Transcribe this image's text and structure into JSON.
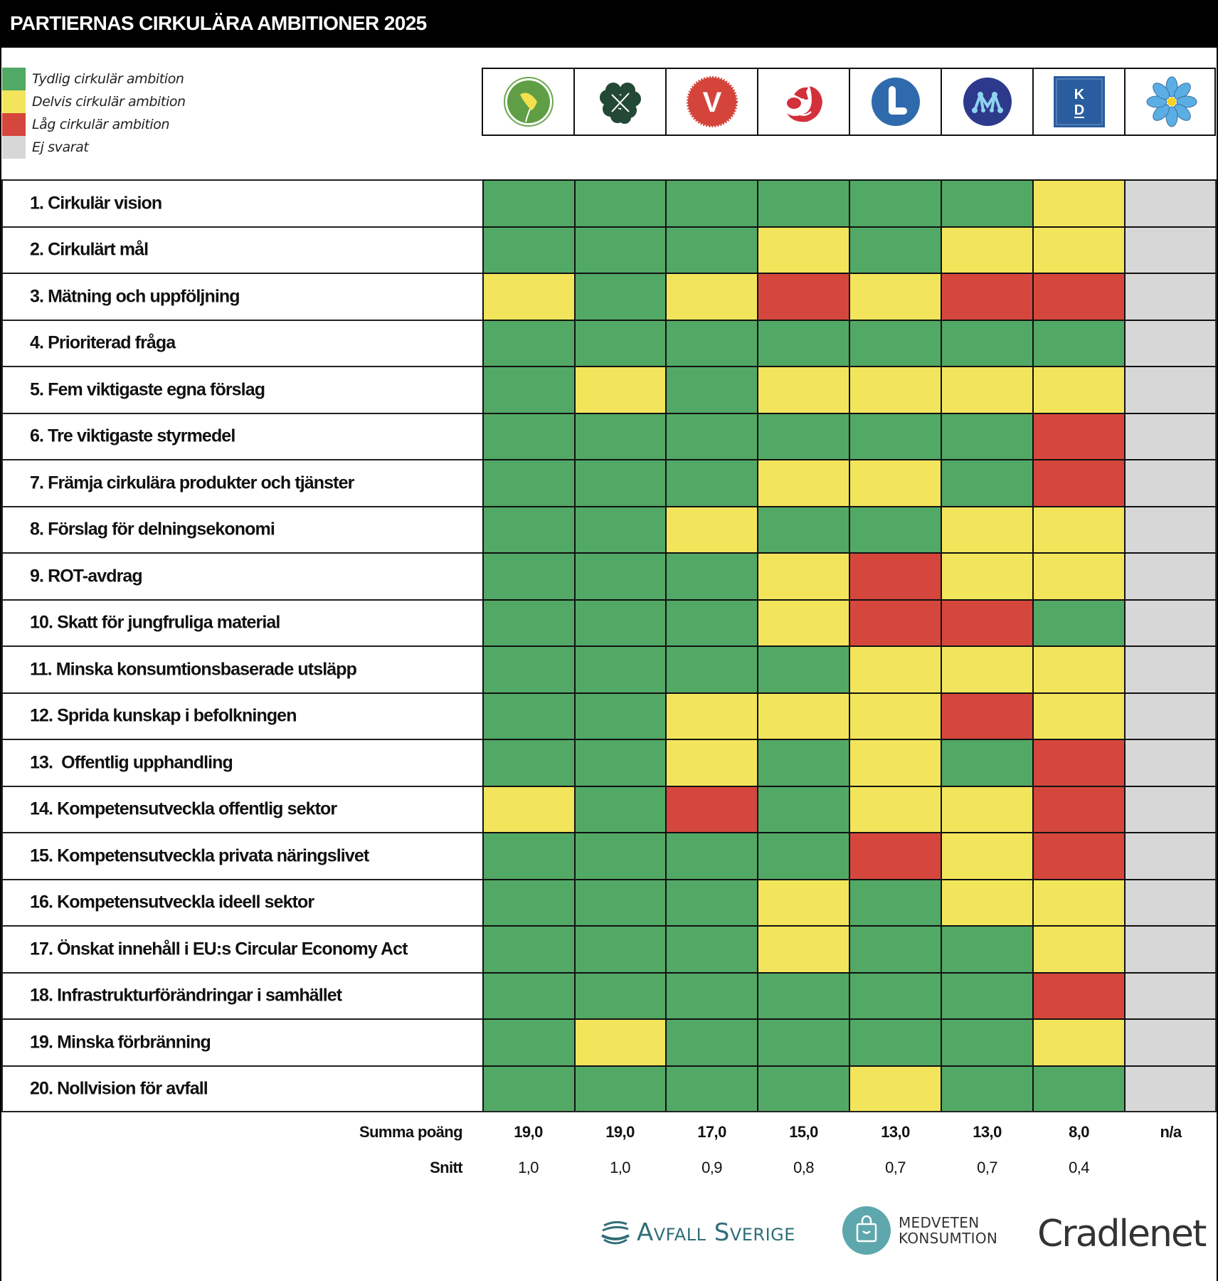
{
  "header": {
    "title": "PARTIERNAS CIRKULÄRA AMBITIONER 2025"
  },
  "colors": {
    "green": "#52a865",
    "yellow": "#f2e55c",
    "red": "#d5473d",
    "grey": "#d7d7d7"
  },
  "legend": [
    {
      "key": "green",
      "label": "Tydlig cirkulär ambition"
    },
    {
      "key": "yellow",
      "label": "Delvis cirkulär ambition"
    },
    {
      "key": "red",
      "label": "Låg cirkulär ambition"
    },
    {
      "key": "grey",
      "label": "Ej svarat"
    }
  ],
  "parties": [
    {
      "icon": "miljopartiet-logo-icon"
    },
    {
      "icon": "centerpartiet-logo-icon"
    },
    {
      "icon": "vansterpartiet-logo-icon",
      "text": "V"
    },
    {
      "icon": "socialdemokraterna-logo-icon"
    },
    {
      "icon": "liberalerna-logo-icon"
    },
    {
      "icon": "moderaterna-logo-icon"
    },
    {
      "icon": "kristdemokraterna-logo-icon",
      "text": "KD"
    },
    {
      "icon": "sverigedemokraterna-logo-icon"
    }
  ],
  "chart_data": {
    "type": "heatmap",
    "title": "PARTIERNAS CIRKULÄRA AMBITIONER 2025",
    "scale": {
      "green": "Tydlig cirkulär ambition",
      "yellow": "Delvis cirkulär ambition",
      "red": "Låg cirkulär ambition",
      "grey": "Ej svarat"
    },
    "rows": [
      {
        "label": "1. Cirkulär vision",
        "values": [
          "green",
          "green",
          "green",
          "green",
          "green",
          "green",
          "yellow",
          "grey"
        ]
      },
      {
        "label": "2. Cirkulärt mål",
        "values": [
          "green",
          "green",
          "green",
          "yellow",
          "green",
          "yellow",
          "yellow",
          "grey"
        ]
      },
      {
        "label": "3. Mätning och uppföljning",
        "values": [
          "yellow",
          "green",
          "yellow",
          "red",
          "yellow",
          "red",
          "red",
          "grey"
        ]
      },
      {
        "label": "4. Prioriterad fråga",
        "values": [
          "green",
          "green",
          "green",
          "green",
          "green",
          "green",
          "green",
          "grey"
        ]
      },
      {
        "label": "5. Fem viktigaste egna förslag",
        "values": [
          "green",
          "yellow",
          "green",
          "yellow",
          "yellow",
          "yellow",
          "yellow",
          "grey"
        ]
      },
      {
        "label": "6. Tre viktigaste styrmedel",
        "values": [
          "green",
          "green",
          "green",
          "green",
          "green",
          "green",
          "red",
          "grey"
        ]
      },
      {
        "label": "7. Främja cirkulära produkter och tjänster",
        "values": [
          "green",
          "green",
          "green",
          "yellow",
          "yellow",
          "green",
          "red",
          "grey"
        ]
      },
      {
        "label": "8. Förslag för delningsekonomi",
        "values": [
          "green",
          "green",
          "yellow",
          "green",
          "green",
          "yellow",
          "yellow",
          "grey"
        ]
      },
      {
        "label": "9. ROT-avdrag",
        "values": [
          "green",
          "green",
          "green",
          "yellow",
          "red",
          "yellow",
          "yellow",
          "grey"
        ]
      },
      {
        "label": "10. Skatt för jungfruliga material",
        "values": [
          "green",
          "green",
          "green",
          "yellow",
          "red",
          "red",
          "green",
          "grey"
        ]
      },
      {
        "label": "11. Minska konsumtionsbaserade utsläpp",
        "values": [
          "green",
          "green",
          "green",
          "green",
          "yellow",
          "yellow",
          "yellow",
          "grey"
        ]
      },
      {
        "label": "12. Sprida kunskap i befolkningen",
        "values": [
          "green",
          "green",
          "yellow",
          "yellow",
          "yellow",
          "red",
          "yellow",
          "grey"
        ]
      },
      {
        "label": "13.  Offentlig upphandling",
        "values": [
          "green",
          "green",
          "yellow",
          "green",
          "yellow",
          "green",
          "red",
          "grey"
        ]
      },
      {
        "label": "14. Kompetensutveckla offentlig sektor",
        "values": [
          "yellow",
          "green",
          "red",
          "green",
          "yellow",
          "yellow",
          "red",
          "grey"
        ]
      },
      {
        "label": "15. Kompetensutveckla privata näringslivet",
        "values": [
          "green",
          "green",
          "green",
          "green",
          "red",
          "yellow",
          "red",
          "grey"
        ]
      },
      {
        "label": "16. Kompetensutveckla ideell sektor",
        "values": [
          "green",
          "green",
          "green",
          "yellow",
          "green",
          "yellow",
          "yellow",
          "grey"
        ]
      },
      {
        "label": "17. Önskat innehåll i EU:s Circular Economy Act",
        "values": [
          "green",
          "green",
          "green",
          "yellow",
          "green",
          "green",
          "yellow",
          "grey"
        ]
      },
      {
        "label": "18. Infrastrukturförändringar i samhället",
        "values": [
          "green",
          "green",
          "green",
          "green",
          "green",
          "green",
          "red",
          "grey"
        ]
      },
      {
        "label": "19. Minska förbränning",
        "values": [
          "green",
          "yellow",
          "green",
          "green",
          "green",
          "green",
          "yellow",
          "grey"
        ]
      },
      {
        "label": "20. Nollvision för avfall",
        "values": [
          "green",
          "green",
          "green",
          "green",
          "yellow",
          "green",
          "green",
          "grey"
        ]
      }
    ],
    "summary": {
      "sum_label": "Summa poäng",
      "sum_values": [
        "19,0",
        "19,0",
        "17,0",
        "15,0",
        "13,0",
        "13,0",
        "8,0",
        "n/a"
      ],
      "avg_label": "Snitt",
      "avg_values": [
        "1,0",
        "1,0",
        "0,9",
        "0,8",
        "0,7",
        "0,7",
        "0,4",
        ""
      ]
    }
  },
  "sponsors": {
    "avfall": "Avfall Sverige",
    "medveten_line1": "MEDVETEN",
    "medveten_line2": "KONSUMTION",
    "cradlenet": "Cradlenet"
  }
}
